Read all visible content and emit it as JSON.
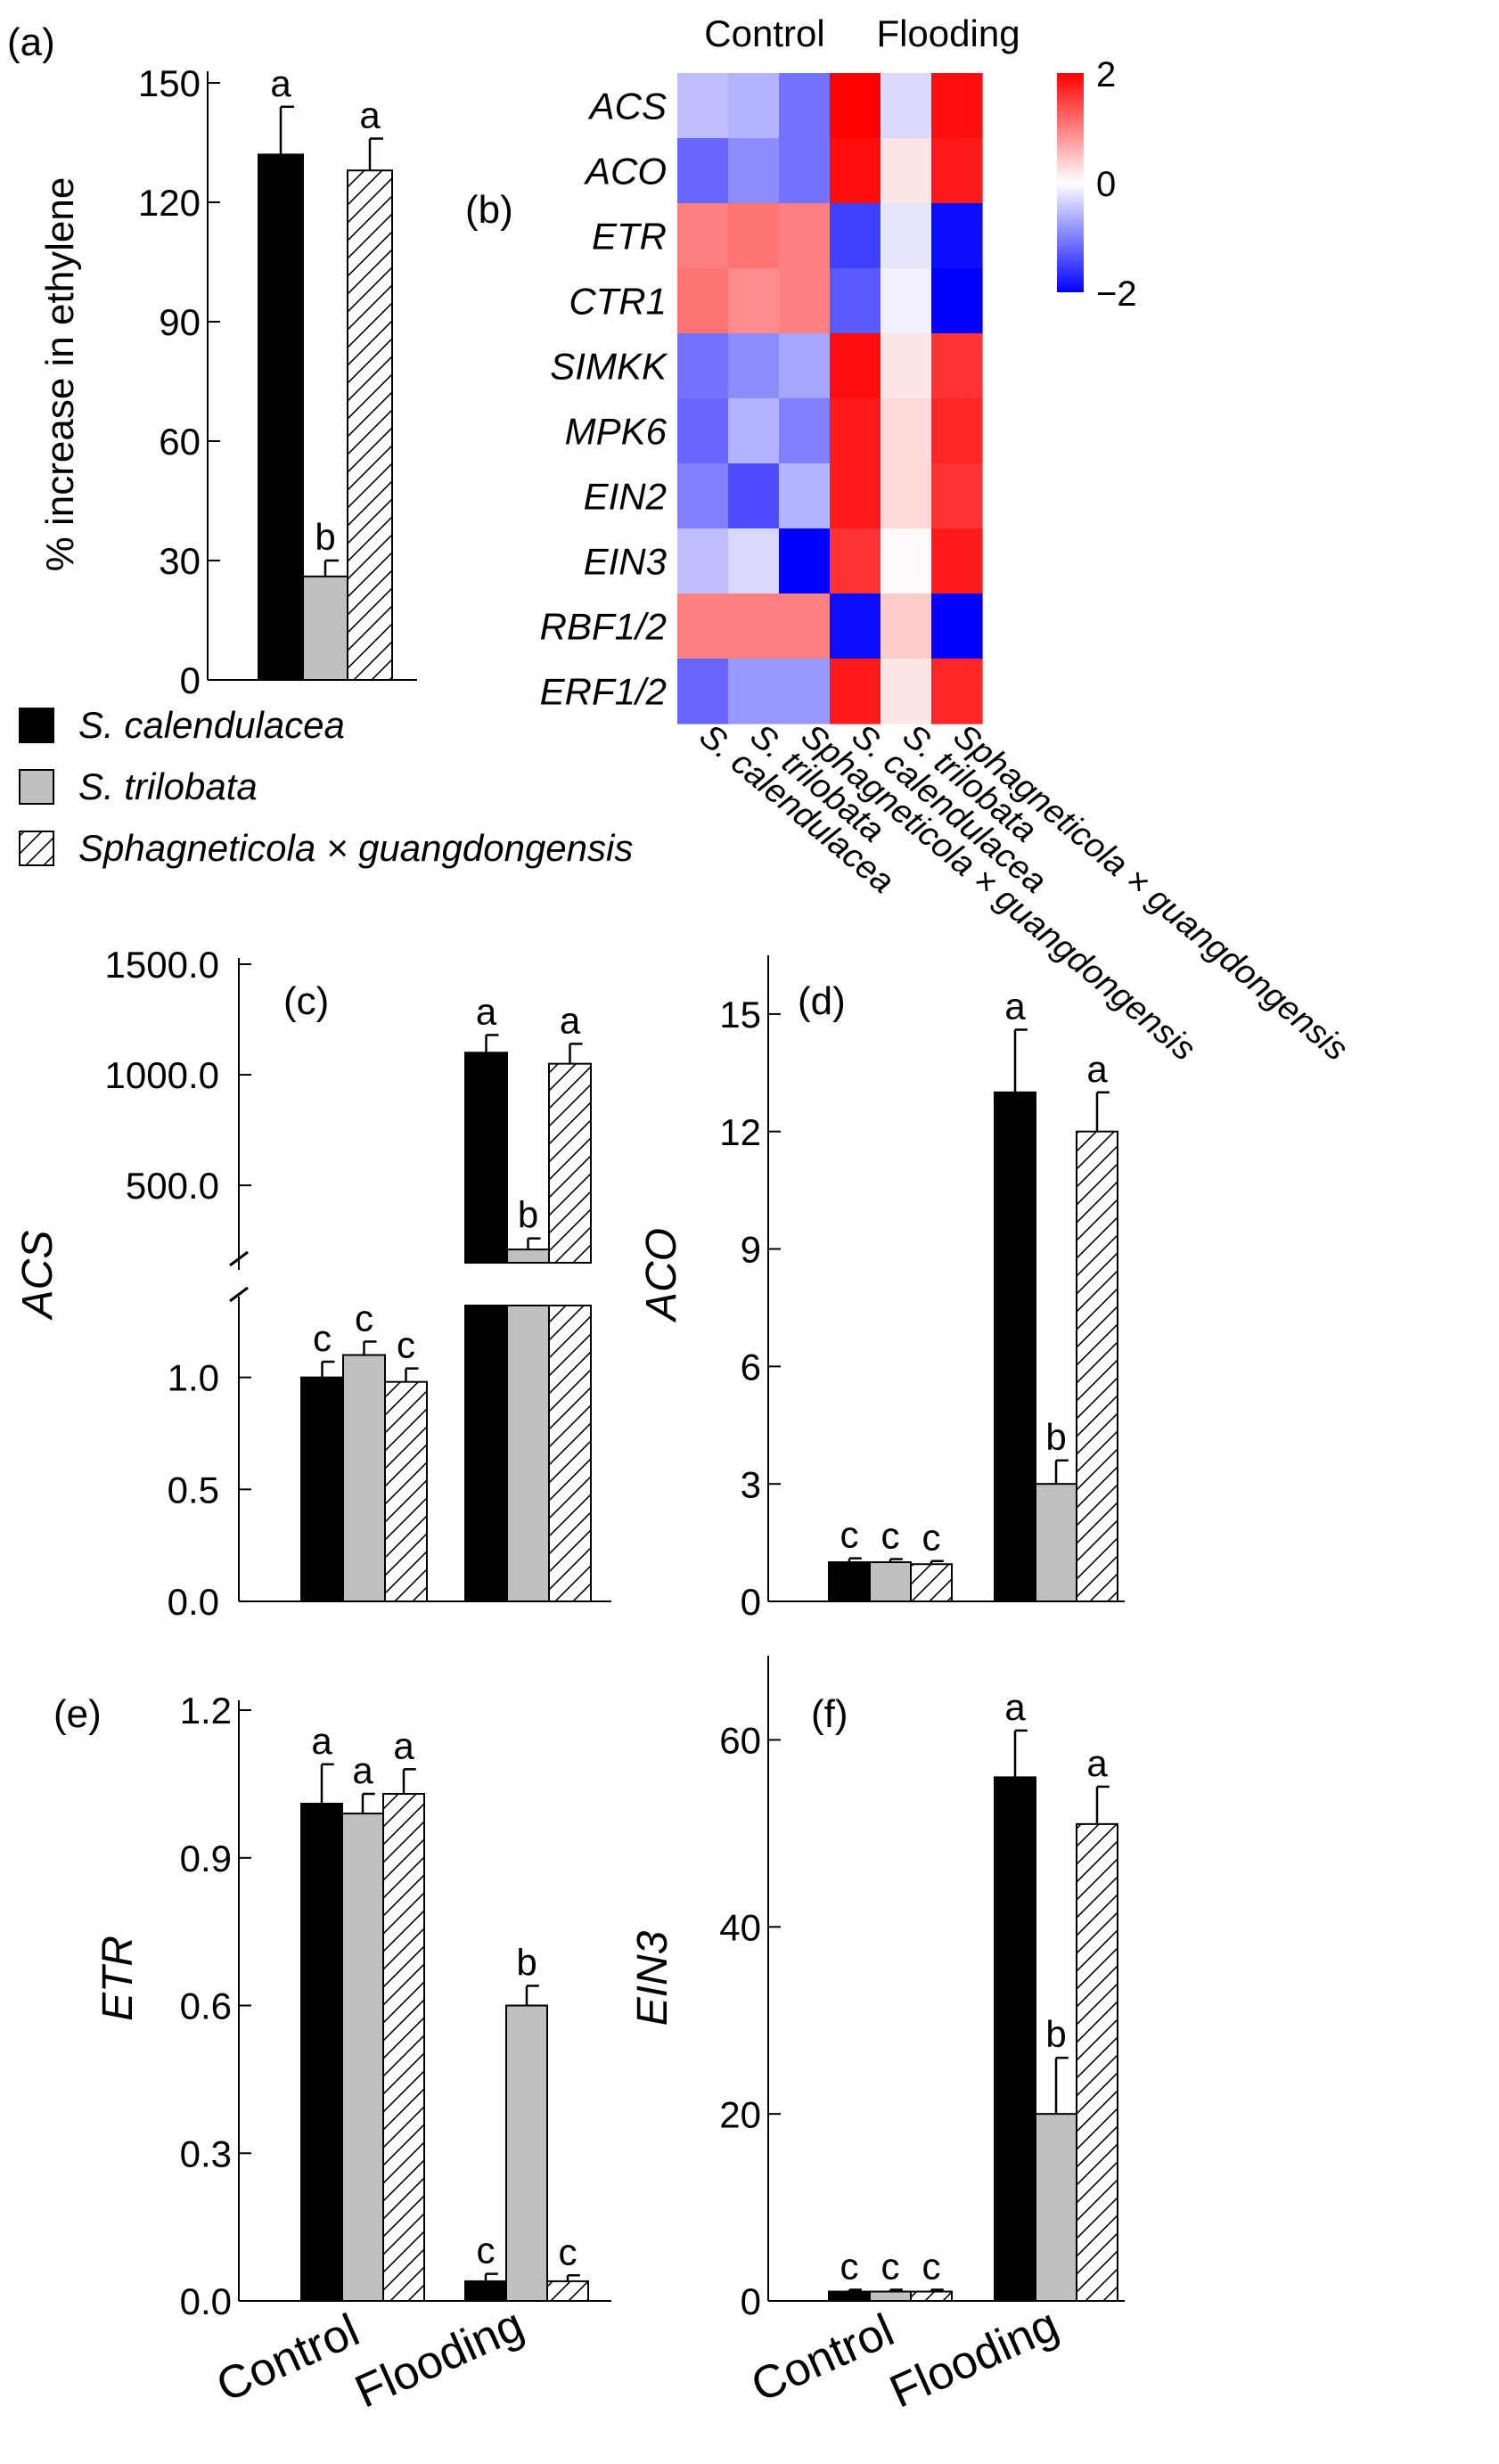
{
  "legend": {
    "items": [
      {
        "label": "S. calendulacea",
        "italic": true,
        "fill": "solid"
      },
      {
        "label": "S. trilobata",
        "italic": true,
        "fill": "gray"
      },
      {
        "label": "Sphagneticola × guangdongensis",
        "italic": true,
        "fill": "hatch"
      }
    ]
  },
  "colors": {
    "solid": "#000000",
    "gray": "#c0c0c0",
    "hatch_bg": "#ffffff",
    "heat_high": "#ff0000",
    "heat_mid": "#ffffff",
    "heat_low": "#0000ff"
  },
  "chart_data": [
    {
      "panel": "(a)",
      "type": "bar",
      "ylabel": "% increase in ethylene",
      "ylim": [
        0,
        150
      ],
      "yticks": [
        0,
        30,
        60,
        90,
        120,
        150
      ],
      "series": [
        {
          "name": "S. calendulacea",
          "values": [
            132
          ],
          "errors": [
            12
          ],
          "letters": [
            "a"
          ]
        },
        {
          "name": "S. trilobata",
          "values": [
            26
          ],
          "errors": [
            4
          ],
          "letters": [
            "b"
          ]
        },
        {
          "name": "Sphagneticola × guangdongensis",
          "values": [
            128
          ],
          "errors": [
            8
          ],
          "letters": [
            "a"
          ]
        }
      ]
    },
    {
      "panel": "(b)",
      "type": "heatmap",
      "group_labels": [
        "Control",
        "Flooding"
      ],
      "rows": [
        "ACS",
        "ACO",
        "ETR",
        "CTR1",
        "SIMKK",
        "MPK6",
        "EIN2",
        "EIN3",
        "RBF1/2",
        "ERF1/2"
      ],
      "columns": [
        "S. calendulacea",
        "S. trilobata",
        "Sphagneticola × guangdongensis",
        "S. calendulacea",
        "S. trilobata",
        "Sphagneticola × guangdongensis"
      ],
      "values": [
        [
          -0.5,
          -0.6,
          -1.1,
          2.2,
          -0.3,
          1.9
        ],
        [
          -1.2,
          -0.9,
          -1.1,
          1.9,
          0.2,
          1.8
        ],
        [
          1.0,
          1.1,
          1.0,
          -1.5,
          -0.2,
          -1.9
        ],
        [
          1.1,
          0.9,
          1.0,
          -1.3,
          -0.1,
          -2.0
        ],
        [
          -1.1,
          -0.9,
          -0.7,
          1.9,
          0.2,
          1.6
        ],
        [
          -1.2,
          -0.6,
          -1.0,
          1.8,
          0.3,
          1.7
        ],
        [
          -1.0,
          -1.4,
          -0.6,
          1.8,
          0.3,
          1.6
        ],
        [
          -0.5,
          -0.3,
          -2.0,
          1.6,
          0.05,
          1.8
        ],
        [
          1.0,
          1.0,
          1.0,
          -1.9,
          0.4,
          -2.0
        ],
        [
          -1.2,
          -0.8,
          -0.8,
          1.8,
          0.2,
          1.7
        ]
      ],
      "colorbar": {
        "ticks": [
          2,
          0,
          -2
        ],
        "tick_labels": [
          "2",
          "0",
          "−2"
        ],
        "range": [
          -2,
          2
        ]
      }
    },
    {
      "panel": "(c)",
      "type": "bar",
      "ylabel": "ACS",
      "categories": [
        "Control",
        "Flooding"
      ],
      "broken_axis": true,
      "lower_ylim": [
        0,
        1.5
      ],
      "lower_yticks": [
        0.0,
        0.5,
        1.0
      ],
      "lower_ytick_labels": [
        "0.0",
        "0.5",
        "1.0"
      ],
      "upper_ylim": [
        150,
        1500
      ],
      "upper_yticks": [
        500,
        1000,
        1500
      ],
      "upper_ytick_labels": [
        "500.0",
        "1000.0",
        "1500.0"
      ],
      "series": [
        {
          "name": "S. calendulacea",
          "values": [
            1.0,
            1100
          ],
          "errors": [
            0.07,
            80
          ],
          "letters": [
            "c",
            "a"
          ]
        },
        {
          "name": "S. trilobata",
          "values": [
            1.1,
            210
          ],
          "errors": [
            0.06,
            50
          ],
          "letters": [
            "c",
            "b"
          ]
        },
        {
          "name": "Sphagneticola × guangdongensis",
          "values": [
            0.98,
            1050
          ],
          "errors": [
            0.06,
            90
          ],
          "letters": [
            "c",
            "a"
          ]
        }
      ]
    },
    {
      "panel": "(d)",
      "type": "bar",
      "ylabel": "ACO",
      "categories": [
        "Control",
        "Flooding"
      ],
      "ylim": [
        0,
        16.5
      ],
      "yticks": [
        0,
        3,
        6,
        9,
        12,
        15
      ],
      "series": [
        {
          "name": "S. calendulacea",
          "values": [
            1.0,
            13
          ],
          "errors": [
            0.1,
            1.6
          ],
          "letters": [
            "c",
            "a"
          ]
        },
        {
          "name": "S. trilobata",
          "values": [
            1.0,
            3.0
          ],
          "errors": [
            0.08,
            0.6
          ],
          "letters": [
            "c",
            "b"
          ]
        },
        {
          "name": "Sphagneticola × guangdongensis",
          "values": [
            0.95,
            12
          ],
          "errors": [
            0.08,
            1.0
          ],
          "letters": [
            "c",
            "a"
          ]
        }
      ]
    },
    {
      "panel": "(e)",
      "type": "bar",
      "ylabel": "ETR",
      "categories": [
        "Control",
        "Flooding"
      ],
      "ylim": [
        0,
        1.22
      ],
      "yticks": [
        0,
        0.3,
        0.6,
        0.9,
        1.2
      ],
      "ytick_labels": [
        "0.0",
        "0.3",
        "0.6",
        "0.9",
        "1.2"
      ],
      "series": [
        {
          "name": "S. calendulacea",
          "values": [
            1.01,
            0.04
          ],
          "errors": [
            0.08,
            0.015
          ],
          "letters": [
            "a",
            "c"
          ]
        },
        {
          "name": "S. trilobata",
          "values": [
            0.99,
            0.6
          ],
          "errors": [
            0.04,
            0.04
          ],
          "letters": [
            "a",
            "b"
          ]
        },
        {
          "name": "Sphagneticola × guangdongensis",
          "values": [
            1.03,
            0.04
          ],
          "errors": [
            0.05,
            0.012
          ],
          "letters": [
            "a",
            "c"
          ]
        }
      ]
    },
    {
      "panel": "(f)",
      "type": "bar",
      "ylabel": "EIN3",
      "categories": [
        "Control",
        "Flooding"
      ],
      "ylim": [
        0,
        69
      ],
      "yticks": [
        0,
        20,
        40,
        60
      ],
      "series": [
        {
          "name": "S. calendulacea",
          "values": [
            1.0,
            56
          ],
          "errors": [
            0.2,
            5
          ],
          "letters": [
            "c",
            "a"
          ]
        },
        {
          "name": "S. trilobata",
          "values": [
            1.0,
            20
          ],
          "errors": [
            0.2,
            6
          ],
          "letters": [
            "c",
            "b"
          ]
        },
        {
          "name": "Sphagneticola × guangdongensis",
          "values": [
            1.0,
            51
          ],
          "errors": [
            0.2,
            4
          ],
          "letters": [
            "c",
            "a"
          ]
        }
      ]
    }
  ]
}
